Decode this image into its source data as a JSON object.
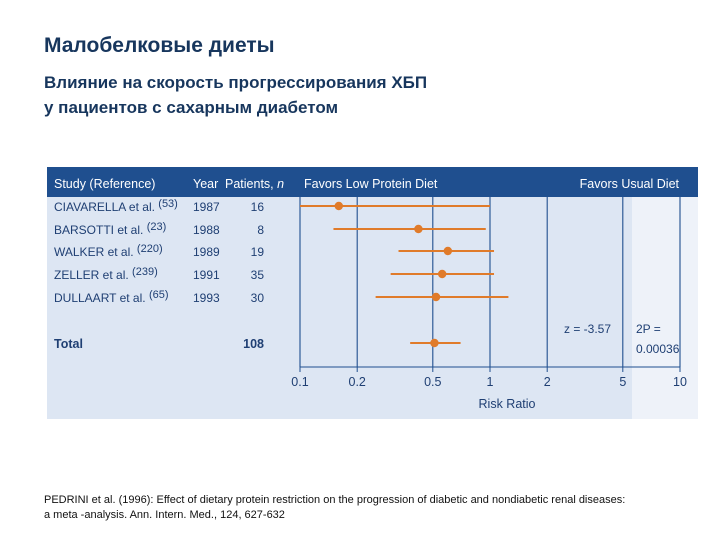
{
  "slide": {
    "title": "Малобелковые диеты",
    "subtitle_line1": "Влияние на скорость прогрессирования ХБП",
    "subtitle_line2": "у пациентов с сахарным диабетом"
  },
  "colors": {
    "header_bg": "#1f4f8f",
    "panel_bg": "#dde6f3",
    "panel_bg_light": "#eef2f9",
    "marker": "#e07b2a",
    "text_dark": "#17365d",
    "axis_text": "#1f3f73"
  },
  "chart_data": {
    "type": "forest",
    "header": {
      "study": "Study (Reference)",
      "year": "Year",
      "patients": "Patients,",
      "patients_n": "n",
      "favors_left": "Favors Low Protein Diet",
      "favors_right": "Favors Usual Diet"
    },
    "studies": [
      {
        "name": "CIAVARELLA et al.",
        "ref": "(53)",
        "year": "1987",
        "n": "16",
        "rr": 0.16,
        "ci": [
          0.1,
          1.0
        ]
      },
      {
        "name": "BARSOTTI et al.",
        "ref": "(23)",
        "year": "1988",
        "n": "8",
        "rr": 0.42,
        "ci": [
          0.15,
          0.95
        ]
      },
      {
        "name": "WALKER et al.",
        "ref": "(220)",
        "year": "1989",
        "n": "19",
        "rr": 0.6,
        "ci": [
          0.33,
          1.05
        ]
      },
      {
        "name": "ZELLER et al.",
        "ref": "(239)",
        "year": "1991",
        "n": "35",
        "rr": 0.56,
        "ci": [
          0.3,
          1.05
        ]
      },
      {
        "name": "DULLAART et al.",
        "ref": "(65)",
        "year": "1993",
        "n": "30",
        "rr": 0.52,
        "ci": [
          0.25,
          1.25
        ]
      }
    ],
    "total": {
      "label": "Total",
      "n": "108",
      "rr": 0.51,
      "ci": [
        0.38,
        0.7
      ]
    },
    "z_text": "z = -3.57",
    "p_line1": "2P =",
    "p_line2": "0.00036",
    "x_ticks": [
      0.1,
      0.2,
      0.5,
      1,
      2,
      5,
      10
    ],
    "x_tick_labels": [
      "0.1",
      "0.2",
      "0.5",
      "1",
      "2",
      "5",
      "10"
    ],
    "xlabel": "Risk Ratio",
    "x_scale": "log",
    "xlim": [
      0.1,
      10
    ]
  },
  "citation": {
    "line1": "PEDRINI et al. (1996): Effect of dietary protein restriction on the progression of diabetic and nondiabetic renal diseases:",
    "line2": "a meta -analysis. Ann. Intern. Med., 124, 627-632"
  }
}
